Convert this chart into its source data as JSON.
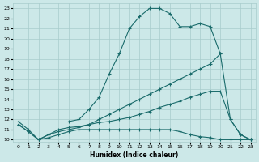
{
  "xlabel": "Humidex (Indice chaleur)",
  "bg_color": "#cce8e8",
  "grid_color": "#a8cccc",
  "line_color": "#1a6b6b",
  "xlim": [
    -0.5,
    23.5
  ],
  "ylim": [
    9.8,
    23.5
  ],
  "yticks": [
    10,
    11,
    12,
    13,
    14,
    15,
    16,
    17,
    18,
    19,
    20,
    21,
    22,
    23
  ],
  "xticks": [
    0,
    1,
    2,
    3,
    4,
    5,
    6,
    7,
    8,
    9,
    10,
    11,
    12,
    13,
    14,
    15,
    16,
    17,
    18,
    19,
    20,
    21,
    22,
    23
  ],
  "lines": [
    {
      "x": [
        5,
        6,
        7,
        8,
        9,
        10,
        11,
        12,
        13,
        14,
        15,
        16,
        17,
        18,
        19,
        20
      ],
      "y": [
        11.8,
        12.0,
        13.0,
        14.2,
        16.5,
        18.5,
        21.0,
        22.2,
        23.0,
        23.0,
        22.5,
        21.2,
        21.2,
        21.5,
        21.2,
        18.5
      ]
    },
    {
      "x": [
        0,
        1,
        2,
        3,
        4,
        5,
        6,
        7,
        8,
        9,
        10,
        11,
        12,
        13,
        14,
        15,
        16,
        17,
        18,
        19,
        20,
        21,
        22,
        23
      ],
      "y": [
        11.8,
        11.0,
        10.0,
        10.5,
        10.8,
        11.0,
        11.2,
        11.5,
        12.0,
        12.5,
        13.0,
        13.5,
        14.0,
        14.5,
        15.0,
        15.5,
        16.0,
        16.5,
        17.0,
        17.5,
        18.5,
        12.0,
        10.5,
        10.0
      ]
    },
    {
      "x": [
        0,
        1,
        2,
        3,
        4,
        5,
        6,
        7,
        8,
        9,
        10,
        11,
        12,
        13,
        14,
        15,
        16,
        17,
        18,
        19,
        20,
        21,
        22,
        23
      ],
      "y": [
        11.5,
        10.8,
        10.0,
        10.5,
        11.0,
        11.2,
        11.3,
        11.5,
        11.7,
        11.8,
        12.0,
        12.2,
        12.5,
        12.8,
        13.2,
        13.5,
        13.8,
        14.2,
        14.5,
        14.8,
        14.8,
        12.0,
        10.5,
        10.0
      ]
    },
    {
      "x": [
        0,
        1,
        2,
        3,
        4,
        5,
        6,
        7,
        8,
        9,
        10,
        11,
        12,
        13,
        14,
        15,
        16,
        17,
        18,
        19,
        20,
        21,
        22,
        23
      ],
      "y": [
        11.5,
        10.8,
        10.0,
        10.2,
        10.5,
        10.8,
        11.0,
        11.0,
        11.0,
        11.0,
        11.0,
        11.0,
        11.0,
        11.0,
        11.0,
        11.0,
        10.8,
        10.5,
        10.3,
        10.2,
        10.0,
        10.0,
        10.0,
        10.0
      ]
    }
  ]
}
